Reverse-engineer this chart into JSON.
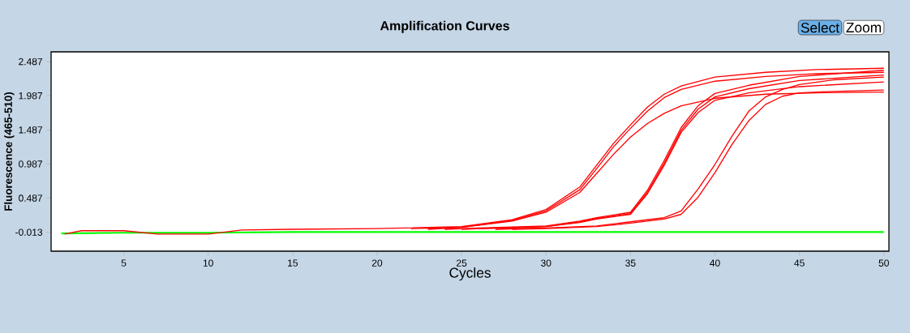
{
  "chart_data": {
    "type": "line",
    "title": "Amplification Curves",
    "xlabel": "Cycles",
    "ylabel": "Fluorescence (465-510)",
    "annotations": [
      "Select",
      "Zoom"
    ],
    "xlim": [
      0.7,
      50.3
    ],
    "ylim": [
      -0.29,
      2.63
    ],
    "xticks": [
      5,
      10,
      15,
      20,
      25,
      30,
      35,
      40,
      45,
      50
    ],
    "yticks": [
      -0.013,
      0.487,
      0.987,
      1.487,
      1.987,
      2.487
    ],
    "grid": false,
    "legend": false,
    "marker": "none",
    "line_style": "solid",
    "series": [
      {
        "color": "#00ff00",
        "x": [
          1.3,
          5,
          10,
          15,
          20,
          25,
          30,
          40,
          50
        ],
        "values": [
          -0.03,
          -0.02,
          -0.02,
          -0.01,
          -0.01,
          -0.01,
          -0.01,
          -0.01,
          -0.01
        ]
      },
      {
        "color": "#ff0000",
        "x": [
          1.5,
          2.5,
          5,
          7,
          10,
          12,
          15,
          20,
          25,
          28,
          30,
          32,
          33,
          34,
          35,
          36,
          37,
          38,
          40,
          43,
          46,
          50
        ],
        "values": [
          -0.04,
          0.01,
          0.01,
          -0.04,
          -0.04,
          0.02,
          0.03,
          0.04,
          0.07,
          0.17,
          0.32,
          0.65,
          0.97,
          1.29,
          1.56,
          1.82,
          2.01,
          2.13,
          2.26,
          2.33,
          2.37,
          2.39
        ]
      },
      {
        "color": "#ff0000",
        "x": [
          22,
          25,
          28,
          30,
          32,
          33,
          34,
          35,
          36,
          37,
          38,
          40,
          43,
          46,
          50
        ],
        "values": [
          0.04,
          0.06,
          0.16,
          0.3,
          0.61,
          0.92,
          1.24,
          1.51,
          1.76,
          1.96,
          2.08,
          2.2,
          2.27,
          2.31,
          2.33
        ]
      },
      {
        "color": "#ff0000",
        "x": [
          23,
          25,
          28,
          30,
          32,
          33,
          34,
          35,
          36,
          37,
          38,
          40,
          43,
          46,
          50
        ],
        "values": [
          0.03,
          0.06,
          0.15,
          0.28,
          0.57,
          0.85,
          1.13,
          1.38,
          1.58,
          1.73,
          1.84,
          1.95,
          2.01,
          2.03,
          2.04
        ]
      },
      {
        "color": "#ff0000",
        "x": [
          24,
          26,
          30,
          32,
          33,
          35,
          36,
          37,
          38,
          39,
          40,
          42,
          45,
          50
        ],
        "values": [
          0.03,
          0.05,
          0.08,
          0.15,
          0.2,
          0.28,
          0.6,
          1.04,
          1.52,
          1.84,
          2.02,
          2.14,
          2.27,
          2.36
        ]
      },
      {
        "color": "#ff0000",
        "x": [
          25,
          27,
          30,
          32,
          33,
          35,
          36,
          37,
          38,
          39,
          40,
          42,
          45,
          50
        ],
        "values": [
          0.03,
          0.05,
          0.07,
          0.14,
          0.19,
          0.26,
          0.57,
          1.0,
          1.48,
          1.79,
          1.97,
          2.09,
          2.21,
          2.29
        ]
      },
      {
        "color": "#ff0000",
        "x": [
          26,
          28,
          30,
          32,
          33,
          35,
          36,
          37,
          38,
          39,
          40,
          42,
          45,
          50
        ],
        "values": [
          0.04,
          0.05,
          0.07,
          0.13,
          0.18,
          0.25,
          0.55,
          0.97,
          1.45,
          1.74,
          1.92,
          2.03,
          2.12,
          2.19
        ]
      },
      {
        "color": "#ff0000",
        "x": [
          27,
          30,
          33,
          35,
          37,
          38,
          39,
          40,
          41,
          42,
          43,
          44,
          45,
          47,
          50
        ],
        "values": [
          0.03,
          0.05,
          0.08,
          0.14,
          0.2,
          0.3,
          0.62,
          0.98,
          1.39,
          1.76,
          1.97,
          2.08,
          2.15,
          2.22,
          2.26
        ]
      },
      {
        "color": "#ff0000",
        "x": [
          28,
          30,
          33,
          35,
          37,
          38,
          39,
          40,
          41,
          42,
          43,
          44,
          45,
          47,
          50
        ],
        "values": [
          0.03,
          0.04,
          0.07,
          0.12,
          0.18,
          0.25,
          0.5,
          0.86,
          1.27,
          1.62,
          1.86,
          1.98,
          2.03,
          2.05,
          2.07
        ]
      }
    ]
  }
}
